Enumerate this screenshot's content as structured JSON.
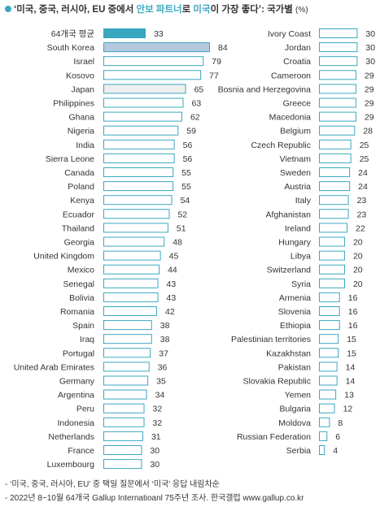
{
  "title": {
    "part1": "‘미국, 중국, 러시아, EU 중에서 ",
    "hl1": "안보 파트너",
    "part2": "로 ",
    "hl2": "미국",
    "part3": "이 가장 좋다’: 국가별",
    "unit": "(%)"
  },
  "notes": [
    "- ‘미국, 중국, 러시아, EU’ 중 택일 질문에서 ‘미국’ 응답 내림차순",
    "- 2022년 8~10월 64개국 Gallup Internatioanl 75주년 조사. 한국갤럽 www.gallup.co.kr"
  ],
  "colors": {
    "accent": "#3aa7c0",
    "korea": "#b4c8de",
    "japan": "#eeeeee",
    "bar_border": "#3aa7c0",
    "default_fill": "#ffffff"
  },
  "chart_data": {
    "type": "bar",
    "orientation": "horizontal",
    "xlim": [
      0,
      100
    ],
    "columns": [
      {
        "rows": [
          {
            "label": "64개국 평균",
            "value": 33,
            "style": "average"
          },
          {
            "label": "South Korea",
            "value": 84,
            "style": "korea"
          },
          {
            "label": "Israel",
            "value": 79
          },
          {
            "label": "Kosovo",
            "value": 77
          },
          {
            "label": "Japan",
            "value": 65,
            "style": "japan"
          },
          {
            "label": "Philippines",
            "value": 63
          },
          {
            "label": "Ghana",
            "value": 62
          },
          {
            "label": "Nigeria",
            "value": 59
          },
          {
            "label": "India",
            "value": 56
          },
          {
            "label": "Sierra Leone",
            "value": 56
          },
          {
            "label": "Canada",
            "value": 55
          },
          {
            "label": "Poland",
            "value": 55
          },
          {
            "label": "Kenya",
            "value": 54
          },
          {
            "label": "Ecuador",
            "value": 52
          },
          {
            "label": "Thailand",
            "value": 51
          },
          {
            "label": "Georgia",
            "value": 48
          },
          {
            "label": "United Kingdom",
            "value": 45
          },
          {
            "label": "Mexico",
            "value": 44
          },
          {
            "label": "Senegal",
            "value": 43
          },
          {
            "label": "Bolivia",
            "value": 43
          },
          {
            "label": "Romania",
            "value": 42
          },
          {
            "label": "Spain",
            "value": 38
          },
          {
            "label": "Iraq",
            "value": 38
          },
          {
            "label": "Portugal",
            "value": 37
          },
          {
            "label": "United Arab Emirates",
            "value": 36
          },
          {
            "label": "Germany",
            "value": 35
          },
          {
            "label": "Argentina",
            "value": 34
          },
          {
            "label": "Peru",
            "value": 32
          },
          {
            "label": "Indonesia",
            "value": 32
          },
          {
            "label": "Netherlands",
            "value": 31
          },
          {
            "label": "France",
            "value": 30
          },
          {
            "label": "Luxembourg",
            "value": 30
          }
        ]
      },
      {
        "rows": [
          {
            "label": "Ivory Coast",
            "value": 30
          },
          {
            "label": "Jordan",
            "value": 30
          },
          {
            "label": "Croatia",
            "value": 30
          },
          {
            "label": "Cameroon",
            "value": 29
          },
          {
            "label": "Bosnia and Herzegovina",
            "value": 29
          },
          {
            "label": "Greece",
            "value": 29
          },
          {
            "label": "Macedonia",
            "value": 29
          },
          {
            "label": "Belgium",
            "value": 28
          },
          {
            "label": "Czech Republic",
            "value": 25
          },
          {
            "label": "Vietnam",
            "value": 25
          },
          {
            "label": "Sweden",
            "value": 24
          },
          {
            "label": "Austria",
            "value": 24
          },
          {
            "label": "Italy",
            "value": 23
          },
          {
            "label": "Afghanistan",
            "value": 23
          },
          {
            "label": "Ireland",
            "value": 22
          },
          {
            "label": "Hungary",
            "value": 20
          },
          {
            "label": "Libya",
            "value": 20
          },
          {
            "label": "Switzerland",
            "value": 20
          },
          {
            "label": "Syria",
            "value": 20
          },
          {
            "label": "Armenia",
            "value": 16
          },
          {
            "label": "Slovenia",
            "value": 16
          },
          {
            "label": "Ethiopia",
            "value": 16
          },
          {
            "label": "Palestinian territories",
            "value": 15
          },
          {
            "label": "Kazakhstan",
            "value": 15
          },
          {
            "label": "Pakistan",
            "value": 14
          },
          {
            "label": "Slovakia Republic",
            "value": 14
          },
          {
            "label": "Yemen",
            "value": 13
          },
          {
            "label": "Bulgaria",
            "value": 12
          },
          {
            "label": "Moldova",
            "value": 8
          },
          {
            "label": "Russian Federation",
            "value": 6
          },
          {
            "label": "Serbia",
            "value": 4
          }
        ]
      }
    ]
  }
}
